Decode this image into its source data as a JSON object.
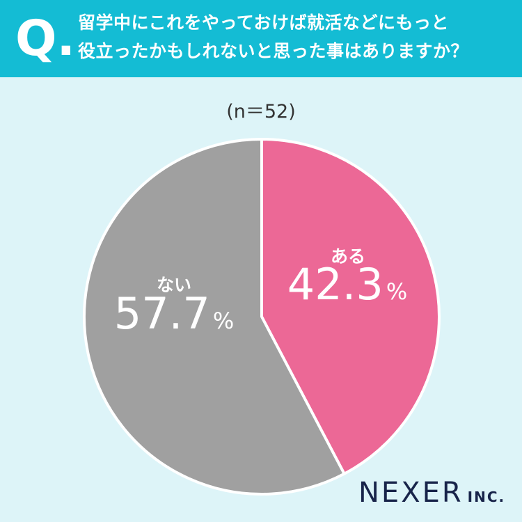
{
  "question": {
    "mark": "Q.",
    "line1": "留学中にこれをやっておけば就活などにもっと",
    "line2": "役立ったかもしれないと思った事はありますか？"
  },
  "sample_size": "(n＝52)",
  "colors": {
    "header": "#14bcd4",
    "background": "#ddf4f8",
    "aru": "#ec6896",
    "nai": "#a0a0a0"
  },
  "chart_data": {
    "type": "pie",
    "categories": [
      "ある",
      "ない"
    ],
    "values": [
      42.3,
      57.7
    ],
    "value_labels": [
      "42.3",
      "57.7"
    ],
    "unit": "%",
    "colors": [
      "#ec6896",
      "#a0a0a0"
    ],
    "start_angle": "12 o'clock",
    "direction": "clockwise"
  },
  "logo": {
    "name": "NEXER",
    "suffix": "INC."
  }
}
